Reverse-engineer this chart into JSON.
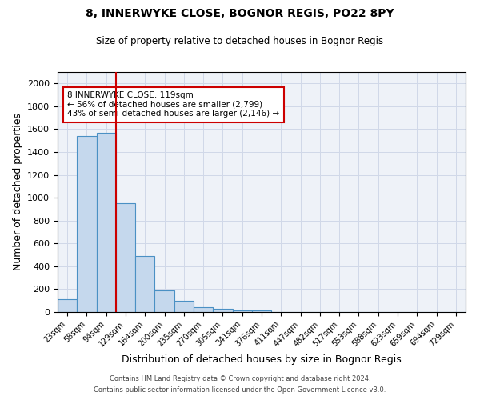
{
  "title_line1": "8, INNERWYKE CLOSE, BOGNOR REGIS, PO22 8PY",
  "title_line2": "Size of property relative to detached houses in Bognor Regis",
  "xlabel": "Distribution of detached houses by size in Bognor Regis",
  "ylabel": "Number of detached properties",
  "categories": [
    "23sqm",
    "58sqm",
    "94sqm",
    "129sqm",
    "164sqm",
    "200sqm",
    "235sqm",
    "270sqm",
    "305sqm",
    "341sqm",
    "376sqm",
    "411sqm",
    "447sqm",
    "482sqm",
    "517sqm",
    "553sqm",
    "588sqm",
    "623sqm",
    "659sqm",
    "694sqm",
    "729sqm"
  ],
  "values": [
    110,
    1540,
    1570,
    950,
    490,
    190,
    100,
    45,
    25,
    15,
    15,
    0,
    0,
    0,
    0,
    0,
    0,
    0,
    0,
    0,
    0
  ],
  "bar_color": "#c5d8ed",
  "bar_edge_color": "#4a90c4",
  "highlight_line_color": "#cc0000",
  "annotation_text": "8 INNERWYKE CLOSE: 119sqm\n← 56% of detached houses are smaller (2,799)\n43% of semi-detached houses are larger (2,146) →",
  "annotation_box_color": "#ffffff",
  "annotation_box_edge_color": "#cc0000",
  "ylim": [
    0,
    2100
  ],
  "yticks": [
    0,
    200,
    400,
    600,
    800,
    1000,
    1200,
    1400,
    1600,
    1800,
    2000
  ],
  "grid_color": "#d0d8e8",
  "bg_color": "#eef2f8",
  "footnote1": "Contains HM Land Registry data © Crown copyright and database right 2024.",
  "footnote2": "Contains public sector information licensed under the Open Government Licence v3.0."
}
